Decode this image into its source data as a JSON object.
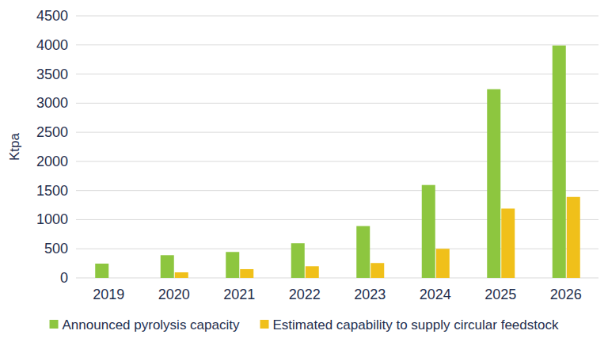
{
  "chart_data": {
    "type": "bar",
    "y_label": "Ktpa",
    "categories": [
      "2019",
      "2020",
      "2021",
      "2022",
      "2023",
      "2024",
      "2025",
      "2026"
    ],
    "series": [
      {
        "name": "Announced pyrolysis capacity",
        "color": "#8dc63f",
        "values": [
          245,
          390,
          445,
          595,
          890,
          1595,
          3240,
          3990
        ]
      },
      {
        "name": "Estimated capability to supply circular feedstock",
        "color": "#f0c01a",
        "values": [
          0,
          95,
          150,
          200,
          255,
          500,
          1190,
          1390
        ]
      }
    ],
    "ylim": [
      0,
      4500
    ],
    "yticks": [
      0,
      500,
      1000,
      1500,
      2000,
      2500,
      3000,
      3500,
      4000,
      4500
    ],
    "grid": true,
    "legend": "bottom"
  }
}
